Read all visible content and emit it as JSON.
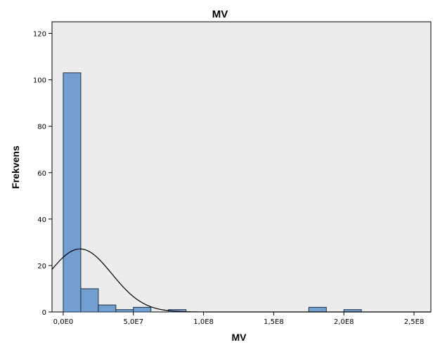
{
  "chart_data": {
    "type": "bar",
    "title": "MV",
    "xlabel": "MV",
    "ylabel": "Frekvens",
    "xlim": [
      -8000000,
      262000000
    ],
    "ylim": [
      0,
      125
    ],
    "x_ticks": [
      {
        "value": 0,
        "label": "0,0E0"
      },
      {
        "value": 50000000,
        "label": "5,0E7"
      },
      {
        "value": 100000000,
        "label": "1,0E8"
      },
      {
        "value": 150000000,
        "label": "1,5E8"
      },
      {
        "value": 200000000,
        "label": "2,0E8"
      },
      {
        "value": 250000000,
        "label": "2,5E8"
      }
    ],
    "y_ticks": [
      {
        "value": 0,
        "label": "0"
      },
      {
        "value": 20,
        "label": "20"
      },
      {
        "value": 40,
        "label": "40"
      },
      {
        "value": 60,
        "label": "60"
      },
      {
        "value": 80,
        "label": "80"
      },
      {
        "value": 100,
        "label": "100"
      },
      {
        "value": 120,
        "label": "120"
      }
    ],
    "bin_width": 12500000,
    "bins": [
      {
        "start": 0,
        "count": 103
      },
      {
        "start": 12500000,
        "count": 10
      },
      {
        "start": 25000000,
        "count": 3
      },
      {
        "start": 37500000,
        "count": 1
      },
      {
        "start": 50000000,
        "count": 2
      },
      {
        "start": 62500000,
        "count": 0
      },
      {
        "start": 75000000,
        "count": 1
      },
      {
        "start": 87500000,
        "count": 0
      },
      {
        "start": 100000000,
        "count": 0
      },
      {
        "start": 112500000,
        "count": 0
      },
      {
        "start": 125000000,
        "count": 0
      },
      {
        "start": 137500000,
        "count": 0
      },
      {
        "start": 150000000,
        "count": 0
      },
      {
        "start": 162500000,
        "count": 0
      },
      {
        "start": 175000000,
        "count": 2
      },
      {
        "start": 187500000,
        "count": 0
      },
      {
        "start": 200000000,
        "count": 1
      },
      {
        "start": 212500000,
        "count": 0
      },
      {
        "start": 225000000,
        "count": 0
      },
      {
        "start": 237500000,
        "count": 0
      }
    ],
    "normal_curve": {
      "mean": 12000000,
      "std": 22600000,
      "n": 123
    },
    "grid": false,
    "colors": {
      "bar_fill": "#729fcf",
      "bar_stroke": "#1f2f4a",
      "plot_background": "#ececec",
      "curve": "#000000"
    }
  }
}
